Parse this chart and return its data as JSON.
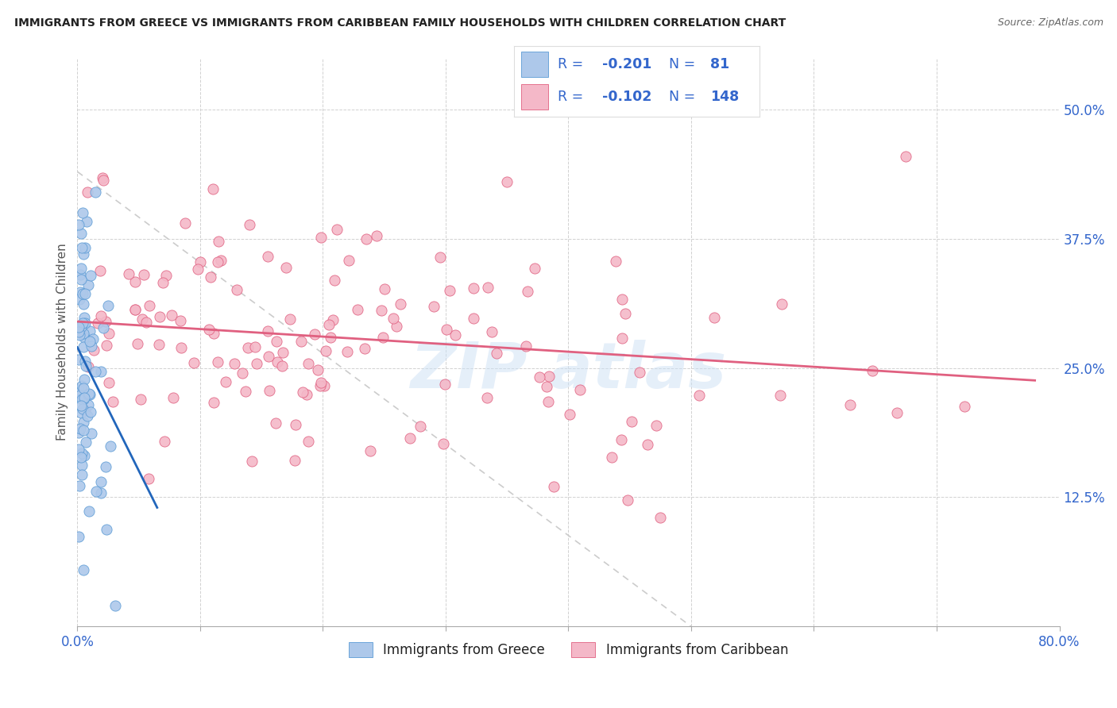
{
  "title": "IMMIGRANTS FROM GREECE VS IMMIGRANTS FROM CARIBBEAN FAMILY HOUSEHOLDS WITH CHILDREN CORRELATION CHART",
  "source": "Source: ZipAtlas.com",
  "ylabel": "Family Households with Children",
  "xlim": [
    0.0,
    0.8
  ],
  "ylim": [
    0.0,
    0.55
  ],
  "xticks": [
    0.0,
    0.1,
    0.2,
    0.3,
    0.4,
    0.5,
    0.6,
    0.7,
    0.8
  ],
  "xticklabels": [
    "0.0%",
    "",
    "",
    "",
    "",
    "",
    "",
    "",
    "80.0%"
  ],
  "ytick_positions": [
    0.0,
    0.125,
    0.25,
    0.375,
    0.5
  ],
  "ytick_labels": [
    "",
    "12.5%",
    "25.0%",
    "37.5%",
    "50.0%"
  ],
  "color_greece_fill": "#adc8ea",
  "color_greece_edge": "#5b9bd5",
  "color_caribbean_fill": "#f4b8c8",
  "color_caribbean_edge": "#e06080",
  "color_line_greece": "#2266bb",
  "color_line_caribbean": "#e06080",
  "color_line_dashed": "#cccccc",
  "color_tick": "#3366cc",
  "color_text": "#222222",
  "color_source": "#666666",
  "color_ylabel": "#555555",
  "color_legend_text": "#3366cc",
  "color_watermark": "#cce0f5",
  "watermark_alpha": 0.5,
  "greece_line_x": [
    0.0,
    0.065
  ],
  "greece_line_y": [
    0.27,
    0.115
  ],
  "caribbean_line_x": [
    0.0,
    0.78
  ],
  "caribbean_line_y": [
    0.295,
    0.238
  ],
  "dash_line_x": [
    0.0,
    0.5
  ],
  "dash_line_y": [
    0.44,
    0.0
  ]
}
